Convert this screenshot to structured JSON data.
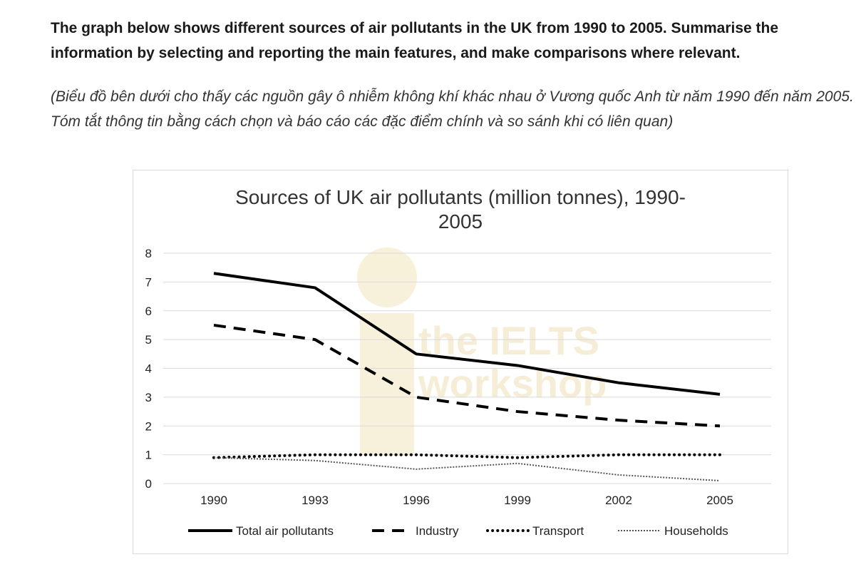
{
  "prompt": {
    "question": "The graph below shows different sources of air pollutants in the UK from 1990 to 2005. Summarise the information by selecting and reporting the main features, and make comparisons where relevant.",
    "translation": "(Biểu đồ bên dưới cho thấy các nguồn gây ô nhiễm không khí khác nhau ở Vương quốc Anh từ năm 1990 đến năm 2005. Tóm tắt thông tin bằng cách chọn và báo cáo các đặc điểm chính và so sánh khi có liên quan)"
  },
  "watermark": {
    "line1": "the IELTS",
    "line2": "workshop"
  },
  "chart_data": {
    "type": "line",
    "title_line1": "Sources of UK air pollutants (million tonnes), 1990-",
    "title_line2": "2005",
    "categories": [
      "1990",
      "1993",
      "1996",
      "1999",
      "2002",
      "2005"
    ],
    "yticks": [
      "0",
      "1",
      "2",
      "3",
      "4",
      "5",
      "6",
      "7",
      "8"
    ],
    "ylim": [
      0,
      8
    ],
    "grid": true,
    "legend_position": "bottom",
    "series": [
      {
        "name": "Total air pollutants",
        "style": "solid",
        "color": "#000000",
        "values": [
          7.3,
          6.8,
          4.5,
          4.1,
          3.5,
          3.1
        ]
      },
      {
        "name": "Industry",
        "style": "dashed",
        "color": "#000000",
        "values": [
          5.5,
          5.0,
          3.0,
          2.5,
          2.2,
          2.0
        ]
      },
      {
        "name": "Transport",
        "style": "dotted",
        "color": "#000000",
        "values": [
          0.9,
          1.0,
          1.0,
          0.9,
          1.0,
          1.0
        ]
      },
      {
        "name": "Households",
        "style": "fine-dotted",
        "color": "#555555",
        "values": [
          0.9,
          0.8,
          0.5,
          0.7,
          0.3,
          0.1
        ]
      }
    ]
  }
}
